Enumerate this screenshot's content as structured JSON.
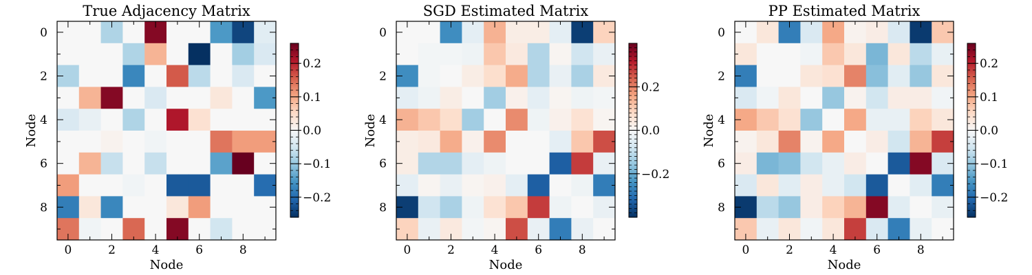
{
  "chart_data": [
    {
      "type": "heatmap",
      "title": "True Adjacency Matrix",
      "xlabel": "Node",
      "ylabel": "Node",
      "x_ticks": [
        0,
        2,
        4,
        6,
        8
      ],
      "y_ticks": [
        0,
        2,
        4,
        6,
        8
      ],
      "colormap": "RdBu_r",
      "vmin": -0.26,
      "vmax": 0.26,
      "colorbar_ticks": [
        -0.2,
        -0.1,
        0.0,
        0.1,
        0.2
      ],
      "colorbar_tick_labels": [
        "−0.2",
        "−0.1",
        "0.0",
        "0.1",
        "0.2"
      ],
      "matrix": [
        [
          0,
          0,
          -0.08,
          0,
          0.24,
          0,
          0,
          -0.15,
          -0.24,
          -0.03
        ],
        [
          0,
          0,
          0,
          -0.08,
          0.09,
          0,
          -0.26,
          0,
          -0.09,
          -0.04
        ],
        [
          -0.08,
          0,
          0,
          -0.17,
          0,
          0.16,
          -0.07,
          0,
          -0.04,
          0
        ],
        [
          0,
          0.09,
          0.24,
          0,
          -0.04,
          0,
          0,
          0.03,
          0,
          -0.15
        ],
        [
          -0.04,
          -0.02,
          0,
          -0.08,
          0,
          0.21,
          0.04,
          0,
          0,
          0
        ],
        [
          0,
          0,
          0.01,
          0,
          -0.01,
          0,
          0,
          0.14,
          0.11,
          0.11
        ],
        [
          0,
          0.09,
          -0.06,
          0,
          -0.06,
          0,
          0,
          -0.14,
          0.26,
          0
        ],
        [
          0.11,
          0,
          0,
          -0.01,
          0,
          -0.22,
          -0.22,
          0,
          0,
          -0.2
        ],
        [
          -0.18,
          0.03,
          -0.17,
          0,
          0,
          0.03,
          0.11,
          0,
          0,
          0
        ],
        [
          0.14,
          -0.01,
          0,
          0.15,
          0,
          0.24,
          0,
          -0.05,
          0,
          0
        ]
      ]
    },
    {
      "type": "heatmap",
      "title": "SGD Estimated Matrix",
      "xlabel": "Node",
      "ylabel": "Node",
      "x_ticks": [
        0,
        2,
        4,
        6,
        8
      ],
      "y_ticks": [
        0,
        2,
        4,
        6,
        8
      ],
      "colormap": "RdBu_r",
      "vmin": -0.4,
      "vmax": 0.4,
      "colorbar_ticks": [
        -0.2,
        0.0,
        0.2
      ],
      "colorbar_tick_labels": [
        "−0.2",
        "0.0",
        "0.2"
      ],
      "matrix": [
        [
          0,
          0,
          -0.25,
          -0.04,
          0.14,
          0.03,
          0.03,
          -0.04,
          -0.38,
          0.09
        ],
        [
          0,
          -0.01,
          -0.01,
          -0.02,
          0.11,
          0.04,
          -0.12,
          0.01,
          -0.08,
          -0.03
        ],
        [
          -0.25,
          -0.01,
          0,
          0.03,
          0.07,
          0.15,
          -0.12,
          -0.03,
          -0.13,
          0.04
        ],
        [
          -0.04,
          -0.02,
          0.03,
          0,
          -0.14,
          0.02,
          -0.04,
          0.01,
          -0.02,
          -0.01
        ],
        [
          0.14,
          0.11,
          0.07,
          -0.14,
          0,
          0.19,
          -0.02,
          0.02,
          0.06,
          0.01
        ],
        [
          0.03,
          0.04,
          0.15,
          0.02,
          0.19,
          0,
          0,
          -0.04,
          0.11,
          0.26
        ],
        [
          0.03,
          -0.12,
          -0.12,
          -0.04,
          -0.02,
          0,
          0,
          -0.33,
          0.28,
          -0.03
        ],
        [
          -0.04,
          0.01,
          -0.03,
          0.01,
          0.02,
          -0.04,
          -0.33,
          0,
          -0.02,
          -0.28
        ],
        [
          -0.38,
          -0.08,
          -0.13,
          -0.02,
          0.06,
          0.11,
          0.28,
          -0.02,
          0,
          -0.03
        ],
        [
          0.09,
          -0.03,
          0.04,
          -0.01,
          0.01,
          0.26,
          -0.03,
          -0.28,
          -0.03,
          0
        ]
      ]
    },
    {
      "type": "heatmap",
      "title": "PP Estimated Matrix",
      "xlabel": "Node",
      "ylabel": "Node",
      "x_ticks": [
        0,
        2,
        4,
        6,
        8
      ],
      "y_ticks": [
        0,
        2,
        4,
        6,
        8
      ],
      "colormap": "RdBu_r",
      "vmin": -0.26,
      "vmax": 0.26,
      "colorbar_ticks": [
        -0.2,
        -0.1,
        0.0,
        0.1,
        0.2
      ],
      "colorbar_tick_labels": [
        "−0.2",
        "−0.1",
        "0.0",
        "0.1",
        "0.2"
      ],
      "matrix": [
        [
          0,
          0.03,
          -0.18,
          -0.04,
          0.1,
          0.01,
          0.02,
          -0.04,
          -0.25,
          0.07
        ],
        [
          0.03,
          0,
          0,
          -0.01,
          0.07,
          0.03,
          -0.12,
          0.03,
          -0.07,
          -0.02
        ],
        [
          -0.18,
          0,
          0,
          0.03,
          0.04,
          0.13,
          -0.11,
          -0.03,
          -0.1,
          0.03
        ],
        [
          -0.04,
          -0.01,
          0.03,
          0,
          -0.1,
          0.01,
          -0.05,
          0.02,
          0.02,
          -0.01
        ],
        [
          0.1,
          0.07,
          0.04,
          -0.1,
          0,
          0.1,
          -0.02,
          -0.02,
          0.06,
          0.03
        ],
        [
          0.01,
          0.03,
          0.13,
          0.01,
          0.1,
          0,
          0.02,
          -0.05,
          0.09,
          0.18
        ],
        [
          0.02,
          -0.12,
          -0.11,
          -0.05,
          -0.02,
          0.02,
          0,
          -0.22,
          0.24,
          -0.04
        ],
        [
          -0.04,
          0.03,
          -0.03,
          0.02,
          -0.02,
          -0.05,
          -0.22,
          0,
          -0.03,
          -0.18
        ],
        [
          -0.25,
          -0.07,
          -0.1,
          0.02,
          0.06,
          0.09,
          0.24,
          -0.03,
          0,
          -0.02
        ],
        [
          0.07,
          -0.02,
          0.03,
          -0.01,
          0.03,
          0.18,
          -0.04,
          -0.18,
          -0.02,
          0
        ]
      ]
    }
  ]
}
